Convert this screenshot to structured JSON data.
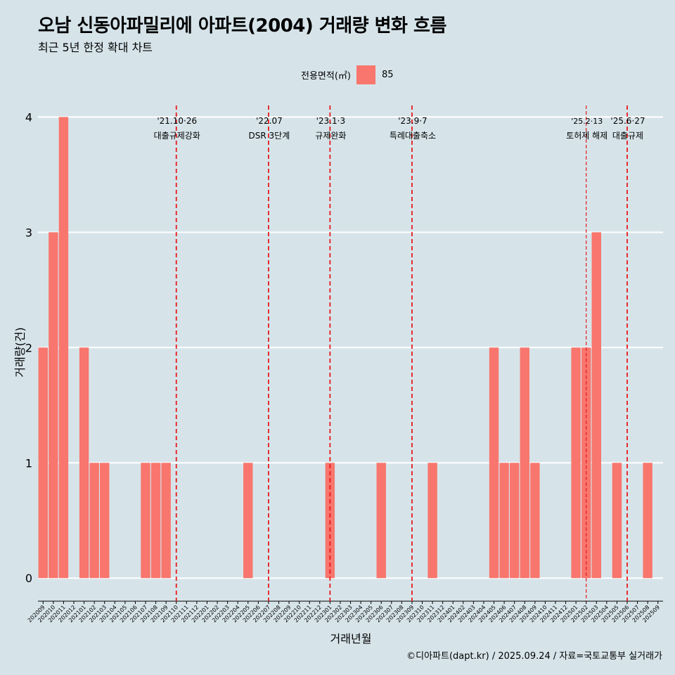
{
  "title": "오남 신동아파밀리에 아파트(2004) 거래량 변화 흐름",
  "subtitle": "최근 5년 한정 확대 차트",
  "caption": "©디아파트(dapt.kr) / 2025.09.24 / 자료=국토교통부 실거래가",
  "colors": {
    "background": "#d6e4ea",
    "bar": "#f8766d",
    "grid": "#ffffff",
    "event_line": "#e8191b"
  },
  "chart_data": {
    "type": "bar",
    "xlabel": "거래년월",
    "ylabel": "거래량(건)",
    "ylim": [
      -0.2,
      4.1
    ],
    "yticks": [
      0,
      1,
      2,
      3,
      4
    ],
    "legend": {
      "title": "전용면적(㎡)",
      "entries": [
        "85"
      ],
      "position": "top"
    },
    "categories": [
      "202009",
      "202010",
      "202011",
      "202012",
      "202101",
      "202102",
      "202103",
      "202104",
      "202105",
      "202106",
      "202107",
      "202108",
      "202109",
      "202110",
      "202111",
      "202112",
      "202201",
      "202202",
      "202203",
      "202204",
      "202205",
      "202206",
      "202207",
      "202208",
      "202209",
      "202210",
      "202211",
      "202212",
      "202301",
      "202302",
      "202303",
      "202304",
      "202305",
      "202306",
      "202307",
      "202308",
      "202309",
      "202310",
      "202311",
      "202312",
      "202401",
      "202402",
      "202403",
      "202404",
      "202405",
      "202406",
      "202407",
      "202408",
      "202409",
      "202410",
      "202411",
      "202412",
      "202501",
      "202502",
      "202503",
      "202504",
      "202505",
      "202506",
      "202507",
      "202508",
      "202509"
    ],
    "series": [
      {
        "name": "85",
        "values": [
          2,
          3,
          4,
          0,
          2,
          1,
          1,
          0,
          0,
          0,
          1,
          1,
          1,
          0,
          0,
          0,
          0,
          0,
          0,
          0,
          1,
          0,
          0,
          0,
          0,
          0,
          0,
          0,
          1,
          0,
          0,
          0,
          0,
          1,
          0,
          0,
          0,
          0,
          1,
          0,
          0,
          0,
          0,
          0,
          2,
          1,
          1,
          2,
          1,
          0,
          0,
          0,
          2,
          2,
          3,
          0,
          1,
          0,
          0,
          1,
          0
        ]
      }
    ],
    "events": [
      {
        "at": 13.0,
        "date": "'21.10·26",
        "label": "대출규제강화",
        "dash": "long"
      },
      {
        "at": 22.0,
        "date": "'22.07",
        "label": "DSR 3단계",
        "dash": "long"
      },
      {
        "at": 28.0,
        "date": "'23.1·3",
        "label": "규제완화",
        "dash": "long"
      },
      {
        "at": 36.0,
        "date": "'23.9·7",
        "label": "특례대출축소",
        "dash": "long"
      },
      {
        "at": 53.0,
        "date": "'25.2·13",
        "label": "토허제 해제",
        "dash": "short"
      },
      {
        "at": 57.0,
        "date": "'25.6·27",
        "label": "대출규제",
        "dash": "long"
      }
    ]
  }
}
